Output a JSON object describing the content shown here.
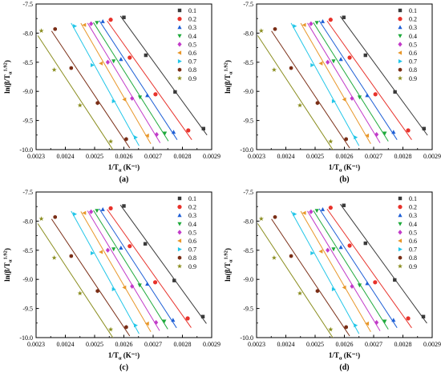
{
  "figure": {
    "panels": [
      {
        "label": "(a)"
      },
      {
        "label": "(b)"
      },
      {
        "label": "(c)"
      },
      {
        "label": "(d)"
      }
    ]
  },
  "chart_data": [
    {
      "type": "scatter",
      "panel_label": "(a)",
      "x_axis": {
        "base": "1/T",
        "sub": "α",
        "unit": " (K⁻¹)"
      },
      "y_axis": {
        "base": "ln(β/T",
        "sub": "α",
        "sup": "1.92",
        "tail": ")"
      },
      "xlim": [
        0.0023,
        0.0029
      ],
      "ylim": [
        -10.0,
        -7.5
      ],
      "xticks": [
        0.0023,
        0.0024,
        0.0025,
        0.0026,
        0.0027,
        0.0028,
        0.0029
      ],
      "yticks": [
        -7.5,
        -8.0,
        -8.5,
        -9.0,
        -9.5,
        -10.0
      ],
      "xtick_labels": [
        "0.0023",
        "0.0024",
        "0.0025",
        "0.0026",
        "0.0027",
        "0.0028",
        "0.0029"
      ],
      "ytick_labels": [
        "-7.5",
        "-8.0",
        "-8.5",
        "-9.0",
        "-9.5",
        "-10.0"
      ],
      "legend_position": "top-right",
      "grid": false,
      "series": [
        {
          "name": "0.1",
          "color": "#3a3a3a",
          "marker": "square",
          "x": [
            0.0026,
            0.002675,
            0.002775,
            0.002872
          ],
          "y": [
            -7.73,
            -8.38,
            -9.01,
            -9.64
          ]
        },
        {
          "name": "0.2",
          "color": "#e8312a",
          "marker": "circle",
          "x": [
            0.002555,
            0.00262,
            0.002708,
            0.00282
          ],
          "y": [
            -7.77,
            -8.42,
            -9.05,
            -9.67
          ]
        },
        {
          "name": "0.3",
          "color": "#1e5fd6",
          "marker": "triangle-up",
          "x": [
            0.002528,
            0.00259,
            0.00268,
            0.00277
          ],
          "y": [
            -7.8,
            -8.45,
            -9.07,
            -9.7
          ]
        },
        {
          "name": "0.4",
          "color": "#1faa3c",
          "marker": "triangle-down",
          "x": [
            0.002508,
            0.002565,
            0.002655,
            0.00274
          ],
          "y": [
            -7.82,
            -8.48,
            -9.1,
            -9.72
          ]
        },
        {
          "name": "0.5",
          "color": "#c23bc9",
          "marker": "diamond",
          "x": [
            0.002488,
            0.002545,
            0.002628,
            0.002712
          ],
          "y": [
            -7.84,
            -8.5,
            -9.12,
            -9.74
          ]
        },
        {
          "name": "0.6",
          "color": "#e8972a",
          "marker": "triangle-left",
          "x": [
            0.002465,
            0.002522,
            0.002602,
            0.00268
          ],
          "y": [
            -7.86,
            -8.52,
            -9.14,
            -9.76
          ]
        },
        {
          "name": "0.7",
          "color": "#22c6e8",
          "marker": "triangle-right",
          "x": [
            0.002432,
            0.002492,
            0.002565,
            0.00264
          ],
          "y": [
            -7.88,
            -8.55,
            -9.17,
            -9.79
          ]
        },
        {
          "name": "0.8",
          "color": "#7a2e16",
          "marker": "hexagon",
          "x": [
            0.002365,
            0.00242,
            0.00251,
            0.002608
          ],
          "y": [
            -7.93,
            -8.6,
            -9.2,
            -9.82
          ]
        },
        {
          "name": "0.9",
          "color": "#8a8d1e",
          "marker": "star",
          "x": [
            0.002318,
            0.002362,
            0.00245,
            0.002555
          ],
          "y": [
            -7.96,
            -8.63,
            -9.24,
            -9.86
          ]
        }
      ]
    },
    {
      "type": "scatter",
      "panel_label": "(b)",
      "x_axis": {
        "base": "1/T",
        "sub": "α",
        "unit": " (K⁻¹)"
      },
      "y_axis": {
        "base": "ln(β/T",
        "sub": "α",
        "sup": "1.92",
        "tail": ")"
      },
      "xlim": [
        0.0023,
        0.0029
      ],
      "ylim": [
        -10.0,
        -7.5
      ],
      "xticks": [
        0.0023,
        0.0024,
        0.0025,
        0.0026,
        0.0027,
        0.0028,
        0.0029
      ],
      "yticks": [
        -7.5,
        -8.0,
        -8.5,
        -9.0,
        -9.5,
        -10.0
      ],
      "xtick_labels": [
        "0.0023",
        "0.0024",
        "0.0025",
        "0.0026",
        "0.0027",
        "0.0028",
        "0.0029"
      ],
      "ytick_labels": [
        "-7.5",
        "-8.0",
        "-8.5",
        "-9.0",
        "-9.5",
        "-10.0"
      ],
      "legend_position": "top-right",
      "grid": false,
      "series": [
        {
          "name": "0.1",
          "color": "#3a3a3a",
          "marker": "square",
          "x": [
            0.002598,
            0.002672,
            0.002773,
            0.002872
          ],
          "y": [
            -7.73,
            -8.38,
            -9.01,
            -9.64
          ]
        },
        {
          "name": "0.2",
          "color": "#e8312a",
          "marker": "circle",
          "x": [
            0.002553,
            0.002618,
            0.002706,
            0.002818
          ],
          "y": [
            -7.77,
            -8.42,
            -9.05,
            -9.67
          ]
        },
        {
          "name": "0.3",
          "color": "#1e5fd6",
          "marker": "triangle-up",
          "x": [
            0.002526,
            0.002588,
            0.002678,
            0.002768
          ],
          "y": [
            -7.8,
            -8.45,
            -9.07,
            -9.7
          ]
        },
        {
          "name": "0.4",
          "color": "#1faa3c",
          "marker": "triangle-down",
          "x": [
            0.002506,
            0.002563,
            0.002652,
            0.002738
          ],
          "y": [
            -7.82,
            -8.48,
            -9.1,
            -9.72
          ]
        },
        {
          "name": "0.5",
          "color": "#c23bc9",
          "marker": "diamond",
          "x": [
            0.002486,
            0.002543,
            0.002626,
            0.00271
          ],
          "y": [
            -7.84,
            -8.5,
            -9.12,
            -9.74
          ]
        },
        {
          "name": "0.6",
          "color": "#e8972a",
          "marker": "triangle-left",
          "x": [
            0.002463,
            0.00252,
            0.0026,
            0.002678
          ],
          "y": [
            -7.86,
            -8.52,
            -9.14,
            -9.76
          ]
        },
        {
          "name": "0.7",
          "color": "#22c6e8",
          "marker": "triangle-right",
          "x": [
            0.00243,
            0.00249,
            0.002563,
            0.002638
          ],
          "y": [
            -7.88,
            -8.55,
            -9.17,
            -9.79
          ]
        },
        {
          "name": "0.8",
          "color": "#7a2e16",
          "marker": "hexagon",
          "x": [
            0.002363,
            0.002418,
            0.002508,
            0.002606
          ],
          "y": [
            -7.93,
            -8.6,
            -9.2,
            -9.82
          ]
        },
        {
          "name": "0.9",
          "color": "#8a8d1e",
          "marker": "star",
          "x": [
            0.002316,
            0.00236,
            0.002448,
            0.002553
          ],
          "y": [
            -7.96,
            -8.63,
            -9.24,
            -9.86
          ]
        }
      ]
    },
    {
      "type": "scatter",
      "panel_label": "(c)",
      "x_axis": {
        "base": "1/T",
        "sub": "α",
        "unit": " (K⁻¹)"
      },
      "y_axis": {
        "base": "ln(β/T",
        "sub": "α",
        "sup": "1.92",
        "tail": ")"
      },
      "xlim": [
        0.0023,
        0.0029
      ],
      "ylim": [
        -10.0,
        -7.5
      ],
      "xticks": [
        0.0023,
        0.0024,
        0.0025,
        0.0026,
        0.0027,
        0.0028,
        0.0029
      ],
      "yticks": [
        -7.5,
        -8.0,
        -8.5,
        -9.0,
        -9.5,
        -10.0
      ],
      "xtick_labels": [
        "0.0023",
        "0.0024",
        "0.0025",
        "0.0026",
        "0.0027",
        "0.0028",
        "0.0029"
      ],
      "ytick_labels": [
        "-7.5",
        "-8.0",
        "-8.5",
        "-9.0",
        "-9.5",
        "-10.0"
      ],
      "legend_position": "top-right",
      "grid": false,
      "series": [
        {
          "name": "0.1",
          "color": "#3a3a3a",
          "marker": "square",
          "x": [
            0.0026,
            0.002673,
            0.002772,
            0.00287
          ],
          "y": [
            -7.74,
            -8.39,
            -9.02,
            -9.64
          ]
        },
        {
          "name": "0.2",
          "color": "#e8312a",
          "marker": "circle",
          "x": [
            0.002555,
            0.00262,
            0.002707,
            0.002818
          ],
          "y": [
            -7.78,
            -8.43,
            -9.05,
            -9.67
          ]
        },
        {
          "name": "0.3",
          "color": "#1e5fd6",
          "marker": "triangle-up",
          "x": [
            0.002528,
            0.00259,
            0.00268,
            0.002768
          ],
          "y": [
            -7.8,
            -8.46,
            -9.08,
            -9.7
          ]
        },
        {
          "name": "0.4",
          "color": "#1faa3c",
          "marker": "triangle-down",
          "x": [
            0.002508,
            0.002565,
            0.002654,
            0.002738
          ],
          "y": [
            -7.82,
            -8.48,
            -9.1,
            -9.72
          ]
        },
        {
          "name": "0.5",
          "color": "#c23bc9",
          "marker": "diamond",
          "x": [
            0.002488,
            0.002545,
            0.002628,
            0.00271
          ],
          "y": [
            -7.84,
            -8.5,
            -9.12,
            -9.74
          ]
        },
        {
          "name": "0.6",
          "color": "#e8972a",
          "marker": "triangle-left",
          "x": [
            0.002465,
            0.002522,
            0.002602,
            0.00268
          ],
          "y": [
            -7.86,
            -8.53,
            -9.14,
            -9.76
          ]
        },
        {
          "name": "0.7",
          "color": "#22c6e8",
          "marker": "triangle-right",
          "x": [
            0.002432,
            0.002492,
            0.002565,
            0.00264
          ],
          "y": [
            -7.88,
            -8.55,
            -9.17,
            -9.79
          ]
        },
        {
          "name": "0.8",
          "color": "#7a2e16",
          "marker": "hexagon",
          "x": [
            0.002365,
            0.00242,
            0.00251,
            0.002608
          ],
          "y": [
            -7.93,
            -8.6,
            -9.2,
            -9.82
          ]
        },
        {
          "name": "0.9",
          "color": "#8a8d1e",
          "marker": "star",
          "x": [
            0.002318,
            0.002362,
            0.00245,
            0.002555
          ],
          "y": [
            -7.96,
            -8.63,
            -9.24,
            -9.86
          ]
        }
      ]
    },
    {
      "type": "scatter",
      "panel_label": "(d)",
      "x_axis": {
        "base": "1/T",
        "sub": "α",
        "unit": " (K⁻¹)"
      },
      "y_axis": {
        "base": "ln(β/T",
        "sub": "α",
        "sup": "1.92",
        "tail": ")"
      },
      "xlim": [
        0.0023,
        0.0029
      ],
      "ylim": [
        -10.0,
        -7.5
      ],
      "xticks": [
        0.0023,
        0.0024,
        0.0025,
        0.0026,
        0.0027,
        0.0028,
        0.0029
      ],
      "yticks": [
        -7.5,
        -8.0,
        -8.5,
        -9.0,
        -9.5,
        -10.0
      ],
      "xtick_labels": [
        "0.0023",
        "0.0024",
        "0.0025",
        "0.0026",
        "0.0027",
        "0.0028",
        "0.0029"
      ],
      "ytick_labels": [
        "-7.5",
        "-8.0",
        "-8.5",
        "-9.0",
        "-9.5",
        "-10.0"
      ],
      "legend_position": "top-right",
      "grid": false,
      "series": [
        {
          "name": "0.1",
          "color": "#3a3a3a",
          "marker": "square",
          "x": [
            0.002598,
            0.002672,
            0.002772,
            0.00287
          ],
          "y": [
            -7.73,
            -8.38,
            -9.01,
            -9.64
          ]
        },
        {
          "name": "0.2",
          "color": "#e8312a",
          "marker": "circle",
          "x": [
            0.002553,
            0.002618,
            0.002705,
            0.002818
          ],
          "y": [
            -7.77,
            -8.42,
            -9.05,
            -9.67
          ]
        },
        {
          "name": "0.3",
          "color": "#1e5fd6",
          "marker": "triangle-up",
          "x": [
            0.002526,
            0.002588,
            0.002678,
            0.002768
          ],
          "y": [
            -7.8,
            -8.45,
            -9.07,
            -9.7
          ]
        },
        {
          "name": "0.4",
          "color": "#1faa3c",
          "marker": "triangle-down",
          "x": [
            0.002506,
            0.002563,
            0.002652,
            0.002738
          ],
          "y": [
            -7.82,
            -8.48,
            -9.1,
            -9.72
          ]
        },
        {
          "name": "0.5",
          "color": "#c23bc9",
          "marker": "diamond",
          "x": [
            0.002486,
            0.002543,
            0.002626,
            0.00271
          ],
          "y": [
            -7.84,
            -8.5,
            -9.12,
            -9.74
          ]
        },
        {
          "name": "0.6",
          "color": "#e8972a",
          "marker": "triangle-left",
          "x": [
            0.002463,
            0.00252,
            0.0026,
            0.002678
          ],
          "y": [
            -7.86,
            -8.52,
            -9.14,
            -9.76
          ]
        },
        {
          "name": "0.7",
          "color": "#22c6e8",
          "marker": "triangle-right",
          "x": [
            0.00243,
            0.00249,
            0.002563,
            0.002638
          ],
          "y": [
            -7.88,
            -8.55,
            -9.17,
            -9.79
          ]
        },
        {
          "name": "0.8",
          "color": "#7a2e16",
          "marker": "hexagon",
          "x": [
            0.002363,
            0.002418,
            0.002508,
            0.002606
          ],
          "y": [
            -7.93,
            -8.6,
            -9.2,
            -9.82
          ]
        },
        {
          "name": "0.9",
          "color": "#8a8d1e",
          "marker": "star",
          "x": [
            0.002316,
            0.00236,
            0.002448,
            0.002553
          ],
          "y": [
            -7.96,
            -8.63,
            -9.24,
            -9.86
          ]
        }
      ]
    }
  ]
}
